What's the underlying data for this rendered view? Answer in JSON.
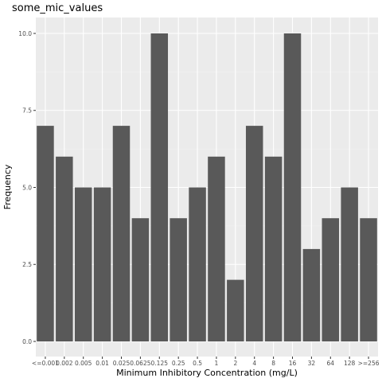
{
  "chart_data": {
    "type": "bar",
    "title": "some_mic_values",
    "xlabel": "Minimum Inhibitory Concentration (mg/L)",
    "ylabel": "Frequency",
    "categories": [
      "<=0.001",
      "0.002",
      "0.005",
      "0.01",
      "0.025",
      "0.0625",
      "0.125",
      "0.25",
      "0.5",
      "1",
      "2",
      "4",
      "8",
      "16",
      "32",
      "64",
      "128",
      ">=256"
    ],
    "values": [
      7,
      6,
      5,
      5,
      7,
      4,
      10,
      4,
      5,
      6,
      2,
      7,
      6,
      10,
      3,
      4,
      5,
      4
    ],
    "ylim": [
      0,
      10.5
    ],
    "yticks": [
      "0.0",
      "2.5",
      "5.0",
      "7.5",
      "10.0"
    ],
    "grid": true,
    "colors": {
      "bar": "#595959",
      "panel": "#ebebeb",
      "grid_major": "#ffffff",
      "grid_minor": "#f5f5f5"
    }
  }
}
